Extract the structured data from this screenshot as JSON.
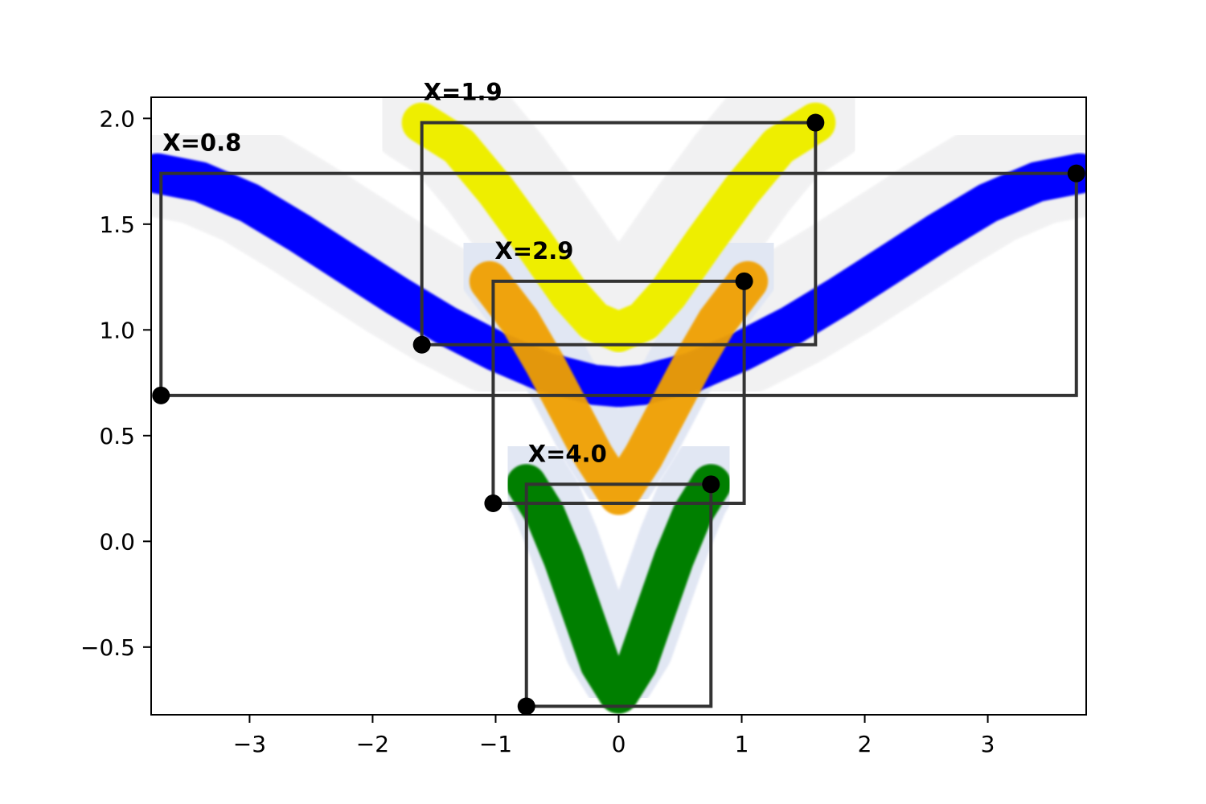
{
  "chart_data": {
    "type": "line",
    "title": "",
    "xlabel": "",
    "ylabel": "",
    "xlim": [
      -3.8,
      3.8
    ],
    "ylim": [
      -0.82,
      2.1
    ],
    "x_ticks": [
      -3,
      -2,
      -1,
      0,
      1,
      2,
      3
    ],
    "x_tick_labels": [
      "−3",
      "−2",
      "−1",
      "0",
      "1",
      "2",
      "3"
    ],
    "y_ticks": [
      -0.5,
      0.0,
      0.5,
      1.0,
      1.5,
      2.0
    ],
    "y_tick_labels": [
      "−0.5",
      "0.0",
      "0.5",
      "1.0",
      "1.5",
      "2.0"
    ],
    "grid": false,
    "series": [
      {
        "color": "#0000ff",
        "label": "X=0.8",
        "x": [
          -3.75,
          -3.4,
          -3.0,
          -2.6,
          -2.2,
          -1.8,
          -1.4,
          -1.0,
          -0.6,
          -0.2,
          0.0,
          0.2,
          0.6,
          1.0,
          1.4,
          1.8,
          2.2,
          2.6,
          3.0,
          3.4,
          3.75
        ],
        "y": [
          1.74,
          1.7,
          1.6,
          1.46,
          1.31,
          1.16,
          1.02,
          0.9,
          0.8,
          0.74,
          0.73,
          0.74,
          0.8,
          0.9,
          1.02,
          1.16,
          1.31,
          1.46,
          1.6,
          1.7,
          1.74
        ],
        "box": {
          "x": [
            -3.72,
            3.72
          ],
          "y": [
            0.69,
            1.74
          ]
        }
      },
      {
        "color": "#eeee00",
        "label": "X=1.9",
        "x": [
          -1.6,
          -1.3,
          -1.0,
          -0.7,
          -0.4,
          -0.2,
          0.0,
          0.2,
          0.4,
          0.7,
          1.0,
          1.3,
          1.6
        ],
        "y": [
          1.98,
          1.87,
          1.66,
          1.42,
          1.17,
          1.04,
          0.99,
          1.04,
          1.17,
          1.42,
          1.66,
          1.87,
          1.98
        ],
        "box": {
          "x": [
            -1.6,
            1.6
          ],
          "y": [
            0.93,
            1.98
          ]
        }
      },
      {
        "color": "#f0a000",
        "label": "X=2.9",
        "x": [
          -1.05,
          -0.8,
          -0.6,
          -0.4,
          -0.2,
          0.0,
          0.2,
          0.4,
          0.6,
          0.8,
          1.05
        ],
        "y": [
          1.23,
          1.04,
          0.84,
          0.62,
          0.4,
          0.22,
          0.4,
          0.62,
          0.84,
          1.04,
          1.23
        ],
        "box": {
          "x": [
            -1.02,
            1.02
          ],
          "y": [
            0.18,
            1.23
          ]
        }
      },
      {
        "color": "#007f00",
        "label": "X=4.0",
        "x": [
          -0.75,
          -0.6,
          -0.45,
          -0.3,
          -0.15,
          0.0,
          0.15,
          0.3,
          0.45,
          0.6,
          0.75
        ],
        "y": [
          0.27,
          0.13,
          -0.08,
          -0.33,
          -0.58,
          -0.72,
          -0.58,
          -0.33,
          -0.08,
          0.13,
          0.27
        ],
        "box": {
          "x": [
            -0.75,
            0.75
          ],
          "y": [
            -0.78,
            0.27
          ]
        }
      }
    ],
    "annotations": [
      {
        "text": "X=0.8",
        "x": -3.72,
        "y": 1.74
      },
      {
        "text": "X=1.9",
        "x": -1.6,
        "y": 1.98
      },
      {
        "text": "X=2.9",
        "x": -1.02,
        "y": 1.23
      },
      {
        "text": "X=4.0",
        "x": -0.75,
        "y": 0.27
      }
    ]
  }
}
